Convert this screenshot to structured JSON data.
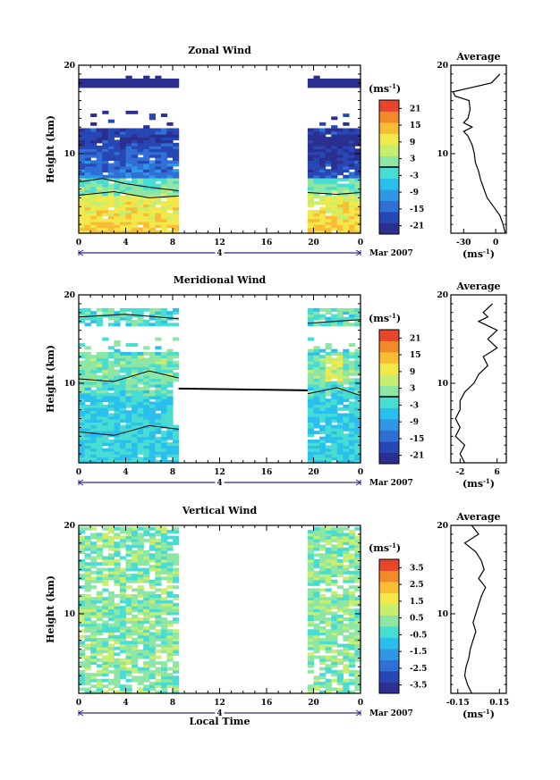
{
  "chart_data": [
    {
      "type": "heatmap",
      "title": "Zonal Wind",
      "ylabel": "Height (km)",
      "xlabel": "",
      "x_ticks": [
        "0",
        "4",
        "8",
        "12",
        "16",
        "20",
        "0"
      ],
      "x_range": [
        0,
        24
      ],
      "y_ticks": [
        "20",
        "10"
      ],
      "y_range": [
        1,
        20
      ],
      "date_day": "4",
      "date_month_year": "Mar 2007",
      "colorbar": {
        "unit": "(ms",
        "unit_exp": "-1",
        "unit_close": ")",
        "ticks": [
          "21",
          "15",
          "9",
          "3",
          "-3",
          "-9",
          "-15",
          "-21"
        ],
        "range": [
          -24,
          24
        ]
      },
      "data_segments": [
        [
          0,
          8.5
        ],
        [
          19.5,
          24
        ]
      ],
      "contours": [
        0
      ],
      "average": {
        "title": "Average",
        "xlabel": "(ms",
        "xlabel_exp": "-1",
        "xlabel_close": ")",
        "x_ticks": [
          "-30",
          "0"
        ],
        "x_range": [
          -42,
          10
        ],
        "y_ticks": [
          "20",
          "10"
        ],
        "profile": [
          [
            1,
            9
          ],
          [
            2,
            7
          ],
          [
            3,
            4
          ],
          [
            4,
            -2
          ],
          [
            5,
            -8
          ],
          [
            6,
            -11
          ],
          [
            7,
            -14
          ],
          [
            8,
            -16
          ],
          [
            9,
            -19
          ],
          [
            10,
            -20
          ],
          [
            11,
            -22
          ],
          [
            12,
            -26
          ],
          [
            12.5,
            -30
          ],
          [
            13,
            -22
          ],
          [
            13.5,
            -30
          ],
          [
            14,
            -26
          ],
          [
            15,
            -24
          ],
          [
            16,
            -25
          ],
          [
            16.5,
            -38
          ],
          [
            17,
            -40
          ],
          [
            18,
            -4
          ],
          [
            19,
            4
          ]
        ]
      }
    },
    {
      "type": "heatmap",
      "title": "Meridional Wind",
      "ylabel": "Height (km)",
      "xlabel": "",
      "x_ticks": [
        "0",
        "4",
        "8",
        "12",
        "16",
        "20",
        "0"
      ],
      "x_range": [
        0,
        24
      ],
      "y_ticks": [
        "20",
        "10"
      ],
      "y_range": [
        1,
        20
      ],
      "date_day": "4",
      "date_month_year": "Mar 2007",
      "colorbar": {
        "unit": "(ms",
        "unit_exp": "-1",
        "unit_close": ")",
        "ticks": [
          "21",
          "15",
          "9",
          "3",
          "-3",
          "-9",
          "-15",
          "-21"
        ],
        "range": [
          -24,
          24
        ]
      },
      "data_segments": [
        [
          0,
          8.5
        ],
        [
          19.5,
          24
        ]
      ],
      "contours": [
        0
      ],
      "average": {
        "title": "Average",
        "xlabel": "(ms",
        "xlabel_exp": "-1",
        "xlabel_close": ")",
        "x_ticks": [
          "-2",
          "6"
        ],
        "x_range": [
          -4,
          8
        ],
        "y_ticks": [
          "20",
          "10"
        ],
        "profile": [
          [
            1,
            -1
          ],
          [
            2,
            -2
          ],
          [
            3,
            -1
          ],
          [
            4,
            -3
          ],
          [
            5,
            -2
          ],
          [
            6,
            -3
          ],
          [
            7,
            -2
          ],
          [
            8,
            -2
          ],
          [
            9,
            -1
          ],
          [
            10,
            1
          ],
          [
            11,
            2
          ],
          [
            12,
            4
          ],
          [
            13,
            3
          ],
          [
            14,
            6
          ],
          [
            15,
            4
          ],
          [
            16,
            6
          ],
          [
            17,
            2
          ],
          [
            17.5,
            4
          ],
          [
            18,
            3
          ],
          [
            19,
            5
          ]
        ]
      }
    },
    {
      "type": "heatmap",
      "title": "Vertical Wind",
      "ylabel": "Height (km)",
      "xlabel": "Local Time",
      "x_ticks": [
        "0",
        "4",
        "8",
        "12",
        "16",
        "20",
        "0"
      ],
      "x_range": [
        0,
        24
      ],
      "y_ticks": [
        "20",
        "10"
      ],
      "y_range": [
        1,
        20
      ],
      "date_day": "4",
      "date_month_year": "Mar 2007",
      "colorbar": {
        "unit": "(ms",
        "unit_exp": "-1",
        "unit_close": ")",
        "ticks": [
          "3.5",
          "2.5",
          "1.5",
          "0.5",
          "-0.5",
          "-1.5",
          "-2.5",
          "-3.5"
        ],
        "range": [
          -4,
          4
        ]
      },
      "data_segments": [
        [
          0,
          8.5
        ],
        [
          19.5,
          24
        ]
      ],
      "contours": [],
      "average": {
        "title": "Average",
        "xlabel": "(ms",
        "xlabel_exp": "-1",
        "xlabel_close": ")",
        "x_ticks": [
          "-0.15",
          "0.15"
        ],
        "x_range": [
          -0.2,
          0.2
        ],
        "y_ticks": [
          "20",
          "10"
        ],
        "profile": [
          [
            1,
            -0.05
          ],
          [
            2,
            -0.08
          ],
          [
            3,
            -0.1
          ],
          [
            4,
            -0.09
          ],
          [
            5,
            -0.07
          ],
          [
            6,
            -0.06
          ],
          [
            7,
            -0.04
          ],
          [
            8,
            -0.02
          ],
          [
            9,
            -0.04
          ],
          [
            10,
            -0.02
          ],
          [
            11,
            0.0
          ],
          [
            12,
            0.02
          ],
          [
            13,
            0.05
          ],
          [
            14,
            0.0
          ],
          [
            15,
            0.04
          ],
          [
            16,
            0.02
          ],
          [
            17,
            -0.02
          ],
          [
            18,
            -0.1
          ],
          [
            19,
            0.0
          ],
          [
            20,
            -0.05
          ]
        ]
      }
    }
  ]
}
